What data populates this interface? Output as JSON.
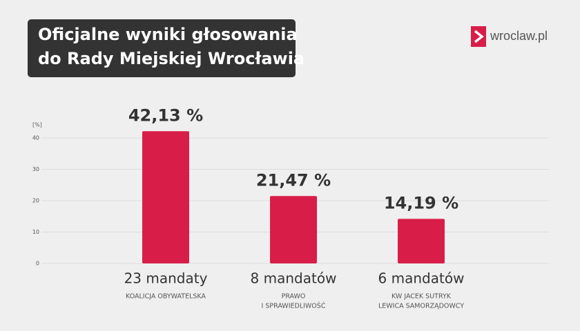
{
  "chart_data": {
    "type": "bar",
    "title_lines": [
      "Oficjalne wyniki głosowania",
      "do Rady Miejskiej Wrocławia"
    ],
    "brand": "wroclaw.pl",
    "y_label": "[%]",
    "categories": [
      "23 mandaty",
      "8 mandatów",
      "6 mandatów"
    ],
    "category_subtitles": [
      [
        "KOALICJA OBYWATELSKA"
      ],
      [
        "PRAWO",
        "I SPRAWIEDLIWOŚĆ"
      ],
      [
        "KW JACEK SUTRYK",
        "LEWICA SAMORZĄDOWCY"
      ]
    ],
    "values": [
      42.13,
      21.47,
      14.19
    ],
    "value_labels": [
      "42,13 %",
      "21,47 %",
      "14,19 %"
    ],
    "color": "#d81e48",
    "ylim": [
      0,
      45
    ],
    "yticks": [
      0,
      10,
      20,
      30,
      40
    ],
    "grid": true
  }
}
